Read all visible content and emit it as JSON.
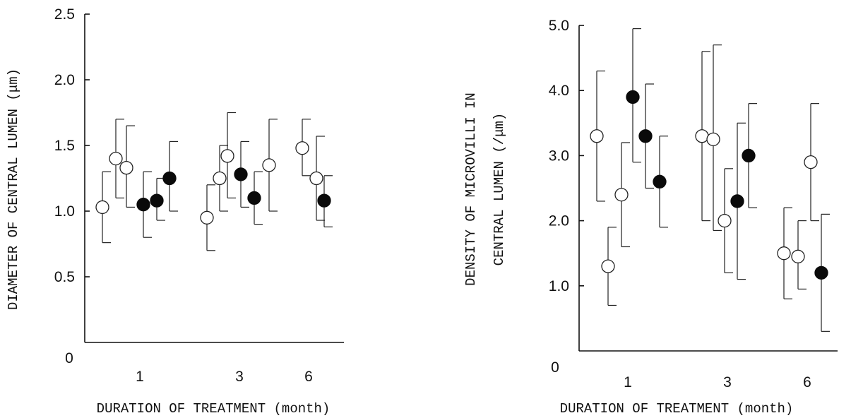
{
  "chart_data": [
    {
      "type": "scatter",
      "title": "",
      "xlabel": "DURATION OF TREATMENT (month)",
      "ylabel": "DIAMETER OF CENTRAL LUMEN (μm)",
      "categories": [
        "1",
        "3",
        "6"
      ],
      "ylim": [
        0,
        2.5
      ],
      "yticks": [
        "0",
        "0.5",
        "1.0",
        "1.5",
        "2.0",
        "2.5"
      ],
      "ytick_values": [
        0,
        0.5,
        1.0,
        1.5,
        2.0,
        2.5
      ],
      "grid": false,
      "legend": "none",
      "series": [
        {
          "marker": "open",
          "points": [
            {
              "group": "1",
              "y": 1.03,
              "low": 0.76,
              "high": 1.3
            },
            {
              "group": "1",
              "y": 1.4,
              "low": 1.1,
              "high": 1.7
            },
            {
              "group": "1",
              "y": 1.33,
              "low": 1.03,
              "high": 1.65
            },
            {
              "group": "3",
              "y": 0.95,
              "low": 0.7,
              "high": 1.2
            },
            {
              "group": "3",
              "y": 1.25,
              "low": 1.0,
              "high": 1.5
            },
            {
              "group": "3",
              "y": 1.42,
              "low": 1.1,
              "high": 1.75
            },
            {
              "group": "6",
              "y": 1.35,
              "low": 1.0,
              "high": 1.7
            },
            {
              "group": "6",
              "y": 1.48,
              "low": 1.27,
              "high": 1.7
            },
            {
              "group": "6",
              "y": 1.25,
              "low": 0.93,
              "high": 1.57
            }
          ]
        },
        {
          "marker": "filled",
          "points": [
            {
              "group": "1",
              "y": 1.05,
              "low": 0.8,
              "high": 1.3
            },
            {
              "group": "1",
              "y": 1.08,
              "low": 0.93,
              "high": 1.25
            },
            {
              "group": "1",
              "y": 1.25,
              "low": 1.0,
              "high": 1.53
            },
            {
              "group": "3",
              "y": 1.28,
              "low": 1.03,
              "high": 1.53
            },
            {
              "group": "3",
              "y": 1.1,
              "low": 0.9,
              "high": 1.3
            },
            {
              "group": "6",
              "y": 1.08,
              "low": 0.88,
              "high": 1.27
            }
          ]
        }
      ]
    },
    {
      "type": "scatter",
      "title": "",
      "xlabel": "DURATION OF TREATMENT (month)",
      "ylabel": "DENSITY OF MICROVILLI IN",
      "ylabel2": "CENTRAL LUMEN (/μm)",
      "categories": [
        "1",
        "3",
        "6"
      ],
      "ylim": [
        0,
        5.0
      ],
      "yticks": [
        "0",
        "1.0",
        "2.0",
        "3.0",
        "4.0",
        "5.0"
      ],
      "ytick_values": [
        0,
        1.0,
        2.0,
        3.0,
        4.0,
        5.0
      ],
      "grid": false,
      "legend": "none",
      "series": [
        {
          "marker": "open",
          "points": [
            {
              "group": "1",
              "y": 3.3,
              "low": 2.3,
              "high": 4.3
            },
            {
              "group": "1",
              "y": 1.3,
              "low": 0.7,
              "high": 1.9
            },
            {
              "group": "1",
              "y": 2.4,
              "low": 1.6,
              "high": 3.2
            },
            {
              "group": "3",
              "y": 3.3,
              "low": 2.0,
              "high": 4.6
            },
            {
              "group": "3",
              "y": 3.25,
              "low": 1.85,
              "high": 4.7
            },
            {
              "group": "3",
              "y": 2.0,
              "low": 1.2,
              "high": 2.8
            },
            {
              "group": "6",
              "y": 1.5,
              "low": 0.8,
              "high": 2.2
            },
            {
              "group": "6",
              "y": 1.45,
              "low": 0.95,
              "high": 2.0
            },
            {
              "group": "6",
              "y": 2.9,
              "low": 2.0,
              "high": 3.8
            }
          ]
        },
        {
          "marker": "filled",
          "points": [
            {
              "group": "1",
              "y": 3.9,
              "low": 2.9,
              "high": 4.95
            },
            {
              "group": "1",
              "y": 3.3,
              "low": 2.5,
              "high": 4.1
            },
            {
              "group": "1",
              "y": 2.6,
              "low": 1.9,
              "high": 3.3
            },
            {
              "group": "3",
              "y": 2.3,
              "low": 1.1,
              "high": 3.5
            },
            {
              "group": "3",
              "y": 3.0,
              "low": 2.2,
              "high": 3.8
            },
            {
              "group": "6",
              "y": 1.2,
              "low": 0.3,
              "high": 2.1
            }
          ]
        }
      ]
    }
  ]
}
